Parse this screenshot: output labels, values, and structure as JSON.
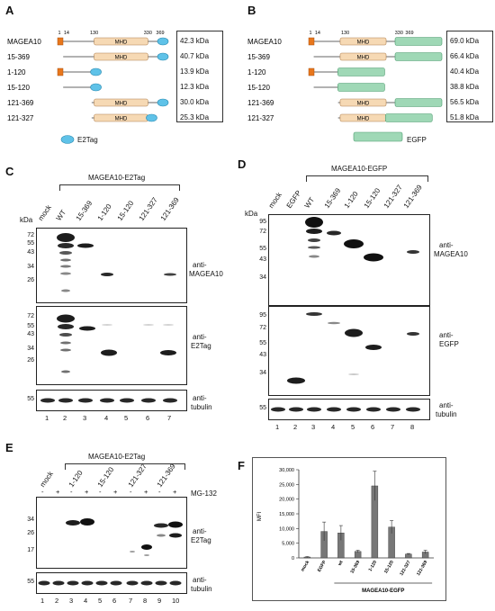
{
  "panel_a": {
    "letter": "A",
    "ticks": [
      "1",
      "14",
      "130",
      "330",
      "369"
    ],
    "domain_label": "MHD",
    "constructs": [
      "MAGEA10",
      "15-369",
      "1-120",
      "15-120",
      "121-369",
      "121-327"
    ],
    "kda": [
      "42.3 kDa",
      "40.7 kDa",
      "13.9 kDa",
      "12.3 kDa",
      "30.0 kDa",
      "25.3 kDa"
    ],
    "legend": "E2Tag",
    "colors": {
      "mhd": "#f6d9b4",
      "tag": "#5fc2e8",
      "n_term": "#e8771c"
    }
  },
  "panel_b": {
    "letter": "B",
    "ticks": [
      "1",
      "14",
      "130",
      "330",
      "369"
    ],
    "domain_label": "MHD",
    "constructs": [
      "MAGEA10",
      "15-369",
      "1-120",
      "15-120",
      "121-369",
      "121-327"
    ],
    "kda": [
      "69.0 kDa",
      "66.4 kDa",
      "40.4 kDa",
      "38.8 kDa",
      "56.5 kDa",
      "51.8 kDa"
    ],
    "legend": "EGFP",
    "colors": {
      "egfp": "#9fd8b6"
    }
  },
  "panel_c": {
    "letter": "C",
    "title": "MAGEA10-E2Tag",
    "kda_label": "kDa",
    "lanes": [
      "mock",
      "WT",
      "15-369",
      "1-120",
      "15-120",
      "121-327",
      "121-369"
    ],
    "lane_numbers": [
      "1",
      "2",
      "3",
      "4",
      "5",
      "6",
      "7"
    ],
    "blot1": {
      "markers": [
        "72",
        "55",
        "43",
        "34",
        "26"
      ],
      "label1": "anti-",
      "label2": "MAGEA10"
    },
    "blot2": {
      "markers": [
        "72",
        "55",
        "43",
        "34",
        "26"
      ],
      "label1": "anti-",
      "label2": "E2Tag"
    },
    "blot3": {
      "markers": [
        "55"
      ],
      "label1": "anti-",
      "label2": "tubulin"
    }
  },
  "panel_d": {
    "letter": "D",
    "title": "MAGEA10-EGFP",
    "kda_label": "kDa",
    "lanes": [
      "mock",
      "EGFP",
      "WT",
      "15-369",
      "1-120",
      "15-120",
      "121-327",
      "121-369"
    ],
    "lane_numbers": [
      "1",
      "2",
      "3",
      "4",
      "5",
      "6",
      "7",
      "8"
    ],
    "blot1": {
      "markers": [
        "95",
        "72",
        "55",
        "43",
        "34"
      ],
      "label1": "anti-",
      "label2": "MAGEA10"
    },
    "blot2": {
      "markers": [
        "95",
        "72",
        "55",
        "43",
        "34"
      ],
      "label1": "anti-",
      "label2": "EGFP"
    },
    "blot3": {
      "markers": [
        "55"
      ],
      "label1": "anti-",
      "label2": "tubulin"
    }
  },
  "panel_e": {
    "letter": "E",
    "title": "MAGEA10-E2Tag",
    "groups": [
      "mock",
      "1-120",
      "15-120",
      "121-327",
      "121-369"
    ],
    "treatment_label": "MG-132",
    "signs": [
      "-",
      "+",
      "-",
      "+",
      "-",
      "+",
      "-",
      "+",
      "-",
      "+"
    ],
    "lane_numbers": [
      "1",
      "2",
      "3",
      "4",
      "5",
      "6",
      "7",
      "8",
      "9",
      "10"
    ],
    "blot1": {
      "markers": [
        "34",
        "26",
        "17"
      ],
      "label1": "anti-",
      "label2": "E2Tag"
    },
    "blot2": {
      "markers": [
        "55"
      ],
      "label1": "anti-",
      "label2": "tubulin"
    }
  },
  "panel_f": {
    "letter": "F",
    "chart_data": {
      "type": "bar",
      "ylabel": "MFI",
      "ylim": [
        0,
        30000
      ],
      "yticks": [
        "0",
        "5,000",
        "10,000",
        "15,000",
        "20,000",
        "25,000",
        "30,000"
      ],
      "categories": [
        "mock",
        "EGFP",
        "wt",
        "15-369",
        "1-120",
        "15-120",
        "121-327",
        "121-369"
      ],
      "values": [
        300,
        9000,
        8500,
        2200,
        24500,
        10500,
        1300,
        2000
      ],
      "errors": [
        150,
        3200,
        2500,
        400,
        5000,
        2200,
        200,
        600
      ],
      "group_label": "MAGEA10-EGFP"
    }
  }
}
